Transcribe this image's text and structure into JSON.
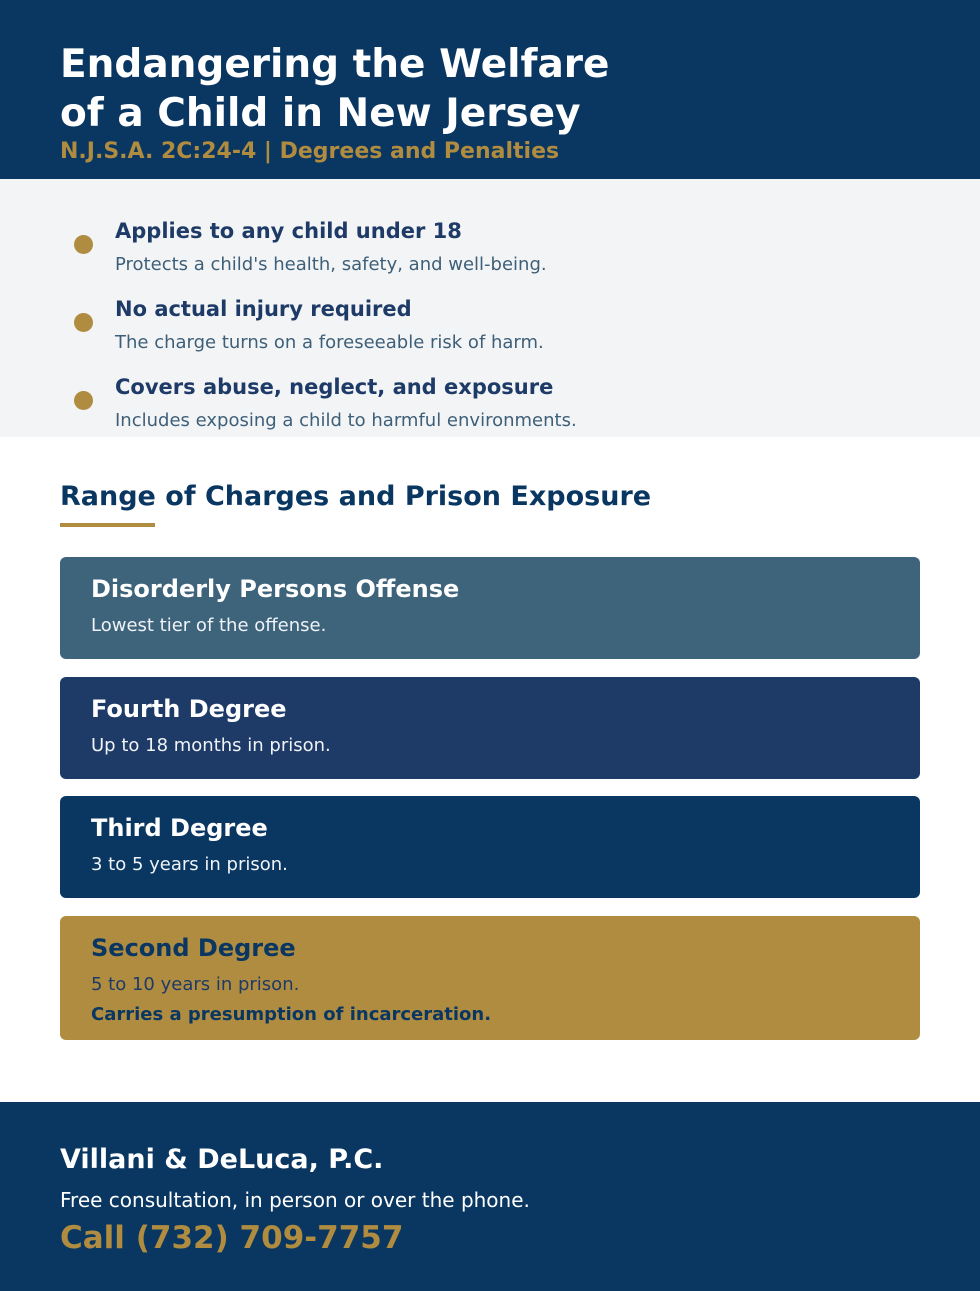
{
  "header": {
    "title_line1": "Endangering the Welfare",
    "title_line2": "of a Child in New Jersey",
    "subtitle": "N.J.S.A. 2C:24-4 | Degrees and Penalties"
  },
  "key_points": [
    {
      "title": "Applies to any child under 18",
      "description": "Protects a child's health, safety, and well-being."
    },
    {
      "title": "No actual injury required",
      "description": "The charge turns on a foreseeable risk of harm."
    },
    {
      "title": "Covers abuse, neglect, and exposure",
      "description": "Includes exposing a child to harmful environments."
    }
  ],
  "section": {
    "title": "Range of Charges and Prison Exposure"
  },
  "charges": [
    {
      "title": "Disorderly Persons Offense",
      "description": "Lowest tier of the offense.",
      "note": "",
      "bg": "#3e647c",
      "fg": "#ffffff"
    },
    {
      "title": "Fourth Degree",
      "description": "Up to 18 months in prison.",
      "note": "",
      "bg": "#1e3a66",
      "fg": "#ffffff"
    },
    {
      "title": "Third Degree",
      "description": "3 to 5 years in prison.",
      "note": "",
      "bg": "#0a3761",
      "fg": "#ffffff"
    },
    {
      "title": "Second Degree",
      "description": "5 to 10 years in prison.",
      "note": "Carries a presumption of incarceration.",
      "bg": "#b08c40",
      "fg": "#0a3761"
    }
  ],
  "footer": {
    "firm": "Villani & DeLuca, P.C.",
    "consultation": "Free consultation, in person or over the phone.",
    "phone": "Call (732) 709-7757"
  },
  "colors": {
    "navy": "#0a3761",
    "gold": "#b08c40",
    "light_bg": "#f3f4f6"
  }
}
